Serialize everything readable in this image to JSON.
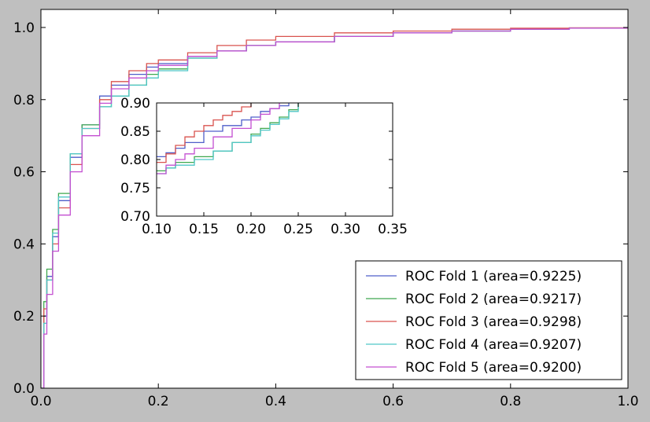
{
  "chart_data": [
    {
      "type": "line",
      "title": "",
      "xlabel": "",
      "ylabel": "",
      "xlim": [
        0.0,
        1.0
      ],
      "ylim": [
        0.0,
        1.05
      ],
      "xticks": [
        0.0,
        0.2,
        0.4,
        0.6,
        0.8,
        1.0
      ],
      "xtick_labels": [
        "0.0",
        "0.2",
        "0.4",
        "0.6",
        "0.8",
        "1.0"
      ],
      "yticks": [
        0.0,
        0.2,
        0.4,
        0.6,
        0.8,
        1.0
      ],
      "ytick_labels": [
        "0.0",
        "0.2",
        "0.4",
        "0.6",
        "0.8",
        "1.0"
      ],
      "grid": false,
      "legend_position": "lower-right",
      "series": [
        {
          "name": "ROC Fold 1 (area=0.9225)",
          "color": "#4f5fc9",
          "x": [
            0,
            0.005,
            0.01,
            0.02,
            0.03,
            0.05,
            0.07,
            0.1,
            0.12,
            0.15,
            0.18,
            0.2,
            0.25,
            0.3,
            0.35,
            0.4,
            0.5,
            0.6,
            0.7,
            0.8,
            0.9,
            1.0
          ],
          "y": [
            0,
            0.2,
            0.31,
            0.42,
            0.52,
            0.64,
            0.73,
            0.81,
            0.84,
            0.87,
            0.89,
            0.9,
            0.92,
            0.935,
            0.95,
            0.96,
            0.975,
            0.985,
            0.99,
            0.995,
            0.998,
            1.0
          ]
        },
        {
          "name": "ROC Fold 2 (area=0.9217)",
          "color": "#3fa84f",
          "x": [
            0,
            0.005,
            0.01,
            0.02,
            0.03,
            0.05,
            0.07,
            0.1,
            0.12,
            0.15,
            0.18,
            0.2,
            0.25,
            0.3,
            0.35,
            0.4,
            0.5,
            0.6,
            0.7,
            0.8,
            0.9,
            1.0
          ],
          "y": [
            0,
            0.24,
            0.33,
            0.44,
            0.54,
            0.65,
            0.73,
            0.78,
            0.81,
            0.84,
            0.87,
            0.885,
            0.915,
            0.935,
            0.95,
            0.96,
            0.975,
            0.985,
            0.99,
            0.995,
            0.998,
            1.0
          ]
        },
        {
          "name": "ROC Fold 3 (area=0.9298)",
          "color": "#d9534f",
          "x": [
            0,
            0.005,
            0.01,
            0.02,
            0.03,
            0.05,
            0.07,
            0.1,
            0.12,
            0.15,
            0.18,
            0.2,
            0.25,
            0.3,
            0.35,
            0.4,
            0.5,
            0.6,
            0.7,
            0.8,
            0.9,
            1.0
          ],
          "y": [
            0,
            0.22,
            0.3,
            0.4,
            0.5,
            0.62,
            0.72,
            0.8,
            0.85,
            0.88,
            0.9,
            0.91,
            0.93,
            0.95,
            0.965,
            0.975,
            0.985,
            0.99,
            0.995,
            0.998,
            0.999,
            1.0
          ]
        },
        {
          "name": "ROC Fold 4 (area=0.9207)",
          "color": "#4fc6c6",
          "x": [
            0,
            0.005,
            0.01,
            0.02,
            0.03,
            0.05,
            0.07,
            0.1,
            0.12,
            0.15,
            0.18,
            0.2,
            0.25,
            0.3,
            0.35,
            0.4,
            0.5,
            0.6,
            0.7,
            0.8,
            0.9,
            1.0
          ],
          "y": [
            0,
            0.18,
            0.3,
            0.43,
            0.53,
            0.65,
            0.72,
            0.78,
            0.81,
            0.84,
            0.86,
            0.88,
            0.915,
            0.935,
            0.95,
            0.96,
            0.975,
            0.985,
            0.99,
            0.995,
            0.998,
            1.0
          ]
        },
        {
          "name": "ROC Fold 5 (area=0.9200)",
          "color": "#c34fd1",
          "x": [
            0,
            0.005,
            0.01,
            0.02,
            0.03,
            0.05,
            0.07,
            0.1,
            0.12,
            0.15,
            0.18,
            0.2,
            0.25,
            0.3,
            0.35,
            0.4,
            0.5,
            0.6,
            0.7,
            0.8,
            0.9,
            1.0
          ],
          "y": [
            0,
            0.15,
            0.26,
            0.38,
            0.48,
            0.6,
            0.7,
            0.79,
            0.83,
            0.86,
            0.88,
            0.895,
            0.92,
            0.935,
            0.95,
            0.96,
            0.975,
            0.985,
            0.99,
            0.995,
            0.998,
            1.0
          ]
        }
      ]
    },
    {
      "type": "line",
      "title": "",
      "note_inset": "zoomed view",
      "xlim": [
        0.1,
        0.35
      ],
      "ylim": [
        0.7,
        0.9
      ],
      "xticks": [
        0.1,
        0.15,
        0.2,
        0.25,
        0.3,
        0.35
      ],
      "xtick_labels": [
        "0.10",
        "0.15",
        "0.20",
        "0.25",
        "0.30",
        "0.35"
      ],
      "yticks": [
        0.7,
        0.75,
        0.8,
        0.85,
        0.9
      ],
      "ytick_labels": [
        "0.70",
        "0.75",
        "0.80",
        "0.85",
        "0.90"
      ],
      "grid": false,
      "series": [
        {
          "name": "ROC Fold 1 (area=0.9225)",
          "color": "#4f5fc9",
          "x": [
            0.1,
            0.11,
            0.12,
            0.13,
            0.15,
            0.17,
            0.19,
            0.2,
            0.21,
            0.22,
            0.23,
            0.24
          ],
          "y": [
            0.805,
            0.812,
            0.82,
            0.83,
            0.85,
            0.86,
            0.87,
            0.875,
            0.885,
            0.89,
            0.895,
            0.9
          ]
        },
        {
          "name": "ROC Fold 2 (area=0.9217)",
          "color": "#3fa84f",
          "x": [
            0.1,
            0.11,
            0.12,
            0.14,
            0.16,
            0.18,
            0.2,
            0.21,
            0.22,
            0.23,
            0.24,
            0.25
          ],
          "y": [
            0.78,
            0.785,
            0.795,
            0.805,
            0.815,
            0.83,
            0.845,
            0.855,
            0.865,
            0.875,
            0.888,
            0.9
          ]
        },
        {
          "name": "ROC Fold 3 (area=0.9298)",
          "color": "#d9534f",
          "x": [
            0.1,
            0.11,
            0.12,
            0.13,
            0.14,
            0.15,
            0.16,
            0.17,
            0.18,
            0.19,
            0.2
          ],
          "y": [
            0.795,
            0.81,
            0.825,
            0.84,
            0.85,
            0.86,
            0.87,
            0.878,
            0.885,
            0.893,
            0.9
          ]
        },
        {
          "name": "ROC Fold 4 (area=0.9207)",
          "color": "#4fc6c6",
          "x": [
            0.1,
            0.11,
            0.12,
            0.14,
            0.16,
            0.18,
            0.2,
            0.21,
            0.22,
            0.23,
            0.24,
            0.25
          ],
          "y": [
            0.775,
            0.785,
            0.79,
            0.8,
            0.815,
            0.83,
            0.842,
            0.852,
            0.862,
            0.872,
            0.885,
            0.9
          ]
        },
        {
          "name": "ROC Fold 5 (area=0.9200)",
          "color": "#c34fd1",
          "x": [
            0.1,
            0.11,
            0.12,
            0.13,
            0.14,
            0.16,
            0.18,
            0.2,
            0.21,
            0.22,
            0.23
          ],
          "y": [
            0.775,
            0.79,
            0.8,
            0.81,
            0.82,
            0.84,
            0.855,
            0.87,
            0.88,
            0.89,
            0.9
          ]
        }
      ]
    }
  ]
}
